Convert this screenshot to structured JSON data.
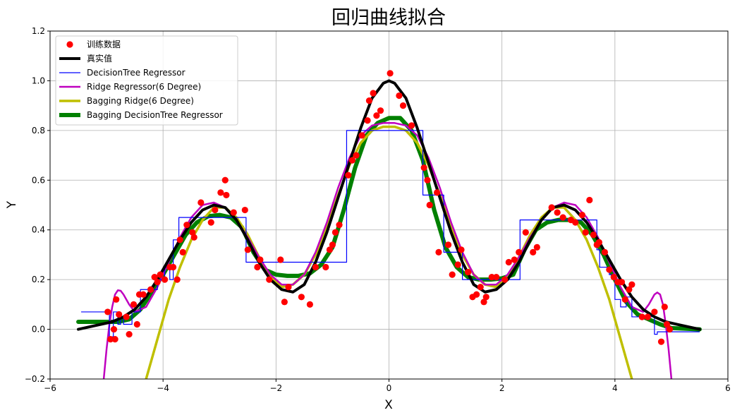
{
  "chart_data": {
    "type": "line",
    "title": "回归曲线拟合",
    "xlabel": "X",
    "ylabel": "Y",
    "xlim": [
      -6,
      6
    ],
    "ylim": [
      -0.2,
      1.2
    ],
    "xticks": [
      -6,
      -4,
      -2,
      0,
      2,
      4,
      6
    ],
    "yticks": [
      -0.2,
      0.0,
      0.2,
      0.4,
      0.6,
      0.8,
      1.0,
      1.2
    ],
    "grid": true,
    "legend_position": "top-left",
    "series": [
      {
        "name": "训练数据",
        "kind": "scatter",
        "color": "#ff0000",
        "points": [
          [
            -4.98,
            0.07
          ],
          [
            -4.93,
            -0.04
          ],
          [
            -4.87,
            0.0
          ],
          [
            -4.85,
            -0.04
          ],
          [
            -4.83,
            0.12
          ],
          [
            -4.78,
            0.06
          ],
          [
            -4.65,
            0.05
          ],
          [
            -4.6,
            -0.02
          ],
          [
            -4.52,
            0.1
          ],
          [
            -4.46,
            0.02
          ],
          [
            -4.42,
            0.14
          ],
          [
            -4.35,
            0.14
          ],
          [
            -4.22,
            0.16
          ],
          [
            -4.15,
            0.21
          ],
          [
            -4.1,
            0.19
          ],
          [
            -4.05,
            0.22
          ],
          [
            -3.97,
            0.2
          ],
          [
            -3.88,
            0.25
          ],
          [
            -3.82,
            0.25
          ],
          [
            -3.75,
            0.2
          ],
          [
            -3.7,
            0.36
          ],
          [
            -3.65,
            0.31
          ],
          [
            -3.58,
            0.42
          ],
          [
            -3.48,
            0.39
          ],
          [
            -3.45,
            0.37
          ],
          [
            -3.33,
            0.51
          ],
          [
            -3.15,
            0.43
          ],
          [
            -3.08,
            0.48
          ],
          [
            -2.98,
            0.55
          ],
          [
            -2.9,
            0.6
          ],
          [
            -2.88,
            0.54
          ],
          [
            -2.75,
            0.47
          ],
          [
            -2.55,
            0.48
          ],
          [
            -2.5,
            0.32
          ],
          [
            -2.33,
            0.25
          ],
          [
            -2.28,
            0.28
          ],
          [
            -2.12,
            0.2
          ],
          [
            -1.92,
            0.28
          ],
          [
            -1.85,
            0.11
          ],
          [
            -1.78,
            0.17
          ],
          [
            -1.55,
            0.13
          ],
          [
            -1.4,
            0.1
          ],
          [
            -1.3,
            0.25
          ],
          [
            -1.12,
            0.25
          ],
          [
            -1.05,
            0.32
          ],
          [
            -1.0,
            0.34
          ],
          [
            -0.95,
            0.39
          ],
          [
            -0.88,
            0.42
          ],
          [
            -0.72,
            0.62
          ],
          [
            -0.65,
            0.68
          ],
          [
            -0.58,
            0.7
          ],
          [
            -0.48,
            0.78
          ],
          [
            -0.38,
            0.84
          ],
          [
            -0.35,
            0.92
          ],
          [
            -0.28,
            0.95
          ],
          [
            -0.22,
            0.86
          ],
          [
            -0.15,
            0.88
          ],
          [
            0.02,
            1.03
          ],
          [
            0.18,
            0.94
          ],
          [
            0.25,
            0.9
          ],
          [
            0.4,
            0.82
          ],
          [
            0.62,
            0.65
          ],
          [
            0.68,
            0.6
          ],
          [
            0.72,
            0.5
          ],
          [
            0.85,
            0.55
          ],
          [
            0.88,
            0.31
          ],
          [
            1.05,
            0.34
          ],
          [
            1.12,
            0.22
          ],
          [
            1.22,
            0.26
          ],
          [
            1.28,
            0.32
          ],
          [
            1.4,
            0.23
          ],
          [
            1.48,
            0.13
          ],
          [
            1.55,
            0.14
          ],
          [
            1.62,
            0.17
          ],
          [
            1.68,
            0.11
          ],
          [
            1.72,
            0.13
          ],
          [
            1.82,
            0.21
          ],
          [
            1.9,
            0.21
          ],
          [
            2.05,
            0.2
          ],
          [
            2.12,
            0.27
          ],
          [
            2.22,
            0.28
          ],
          [
            2.3,
            0.31
          ],
          [
            2.42,
            0.39
          ],
          [
            2.55,
            0.31
          ],
          [
            2.62,
            0.33
          ],
          [
            2.88,
            0.49
          ],
          [
            2.98,
            0.47
          ],
          [
            3.08,
            0.45
          ],
          [
            3.22,
            0.44
          ],
          [
            3.3,
            0.43
          ],
          [
            3.42,
            0.46
          ],
          [
            3.48,
            0.39
          ],
          [
            3.55,
            0.52
          ],
          [
            3.62,
            0.38
          ],
          [
            3.68,
            0.34
          ],
          [
            3.72,
            0.35
          ],
          [
            3.82,
            0.31
          ],
          [
            3.9,
            0.24
          ],
          [
            3.98,
            0.21
          ],
          [
            4.05,
            0.19
          ],
          [
            4.12,
            0.19
          ],
          [
            4.18,
            0.12
          ],
          [
            4.25,
            0.16
          ],
          [
            4.3,
            0.18
          ],
          [
            4.48,
            0.05
          ],
          [
            4.58,
            0.05
          ],
          [
            4.7,
            0.07
          ],
          [
            4.82,
            -0.05
          ],
          [
            4.88,
            0.09
          ],
          [
            4.92,
            0.02
          ],
          [
            4.97,
            0.0
          ]
        ]
      },
      {
        "name": "真实值",
        "kind": "line",
        "color": "#000000",
        "x": [
          -5.5,
          -5.3,
          -5.1,
          -4.9,
          -4.7,
          -4.5,
          -4.3,
          -4.1,
          -3.9,
          -3.7,
          -3.5,
          -3.3,
          -3.1,
          -2.9,
          -2.7,
          -2.5,
          -2.3,
          -2.1,
          -1.9,
          -1.7,
          -1.5,
          -1.3,
          -1.1,
          -0.9,
          -0.7,
          -0.5,
          -0.3,
          -0.1,
          0.0,
          0.1,
          0.3,
          0.5,
          0.7,
          0.9,
          1.1,
          1.3,
          1.5,
          1.7,
          1.9,
          2.1,
          2.3,
          2.5,
          2.7,
          2.9,
          3.1,
          3.3,
          3.5,
          3.7,
          3.9,
          4.1,
          4.3,
          4.5,
          4.7,
          4.9,
          5.1,
          5.3,
          5.5
        ],
        "y": [
          0.0,
          0.01,
          0.02,
          0.03,
          0.05,
          0.08,
          0.13,
          0.2,
          0.28,
          0.36,
          0.43,
          0.48,
          0.5,
          0.49,
          0.44,
          0.36,
          0.27,
          0.2,
          0.16,
          0.15,
          0.18,
          0.27,
          0.39,
          0.53,
          0.67,
          0.81,
          0.93,
          0.99,
          1.0,
          0.99,
          0.93,
          0.81,
          0.67,
          0.53,
          0.39,
          0.27,
          0.18,
          0.15,
          0.16,
          0.2,
          0.27,
          0.36,
          0.44,
          0.49,
          0.5,
          0.48,
          0.43,
          0.36,
          0.28,
          0.2,
          0.13,
          0.08,
          0.05,
          0.03,
          0.02,
          0.01,
          0.0
        ]
      },
      {
        "name": "DecisionTree Regressor",
        "kind": "step",
        "color": "#0000ff",
        "x": [
          -5.45,
          -4.95,
          -4.95,
          -4.88,
          -4.88,
          -4.8,
          -4.8,
          -4.75,
          -4.75,
          -4.7,
          -4.7,
          -4.55,
          -4.55,
          -4.4,
          -4.4,
          -4.1,
          -4.1,
          -3.97,
          -3.97,
          -3.88,
          -3.88,
          -3.82,
          -3.82,
          -3.72,
          -3.72,
          -3.65,
          -3.65,
          -2.53,
          -2.53,
          -0.75,
          -0.75,
          0.6,
          0.6,
          0.9,
          0.9,
          0.97,
          0.97,
          1.3,
          1.3,
          2.32,
          2.32,
          3.68,
          3.68,
          3.73,
          3.73,
          3.9,
          3.9,
          4.0,
          4.0,
          4.1,
          4.1,
          4.2,
          4.2,
          4.3,
          4.3,
          4.5,
          4.5,
          4.7,
          4.7,
          4.75,
          4.75,
          5.5
        ],
        "y": [
          0.07,
          0.07,
          -0.03,
          -0.03,
          0.07,
          0.07,
          0.02,
          0.02,
          0.05,
          0.05,
          0.02,
          0.02,
          0.07,
          0.07,
          0.16,
          0.16,
          0.2,
          0.2,
          0.25,
          0.25,
          0.2,
          0.2,
          0.36,
          0.36,
          0.45,
          0.45,
          0.45,
          0.45,
          0.27,
          0.27,
          0.8,
          0.8,
          0.54,
          0.54,
          0.54,
          0.54,
          0.31,
          0.31,
          0.2,
          0.2,
          0.44,
          0.44,
          0.32,
          0.32,
          0.25,
          0.25,
          0.22,
          0.22,
          0.12,
          0.12,
          0.09,
          0.09,
          0.13,
          0.13,
          0.05,
          0.05,
          0.05,
          0.05,
          -0.02,
          -0.02,
          -0.01,
          -0.01
        ]
      },
      {
        "name": "Ridge Regressor(6 Degree)",
        "kind": "line",
        "color": "#bf00bf",
        "x": [
          -5.05,
          -5.0,
          -4.95,
          -4.9,
          -4.85,
          -4.8,
          -4.75,
          -4.7,
          -4.6,
          -4.5,
          -4.3,
          -4.1,
          -3.9,
          -3.7,
          -3.5,
          -3.3,
          -3.1,
          -2.9,
          -2.7,
          -2.5,
          -2.3,
          -2.1,
          -1.9,
          -1.7,
          -1.5,
          -1.3,
          -1.1,
          -0.9,
          -0.7,
          -0.5,
          -0.3,
          -0.1,
          0.0,
          0.1,
          0.3,
          0.5,
          0.7,
          0.9,
          1.1,
          1.3,
          1.5,
          1.7,
          1.9,
          2.1,
          2.3,
          2.5,
          2.7,
          2.9,
          3.1,
          3.3,
          3.5,
          3.7,
          3.9,
          4.1,
          4.3,
          4.5,
          4.6,
          4.7,
          4.75,
          4.8,
          4.85,
          4.9,
          4.95,
          5.0,
          5.05
        ],
        "y": [
          -0.2,
          -0.08,
          0.02,
          0.09,
          0.14,
          0.157,
          0.155,
          0.14,
          0.1,
          0.07,
          0.09,
          0.17,
          0.27,
          0.37,
          0.45,
          0.5,
          0.51,
          0.49,
          0.44,
          0.37,
          0.29,
          0.22,
          0.18,
          0.18,
          0.22,
          0.31,
          0.43,
          0.57,
          0.69,
          0.78,
          0.82,
          0.83,
          0.83,
          0.83,
          0.82,
          0.78,
          0.69,
          0.57,
          0.43,
          0.31,
          0.22,
          0.18,
          0.18,
          0.22,
          0.29,
          0.37,
          0.44,
          0.49,
          0.51,
          0.5,
          0.45,
          0.37,
          0.27,
          0.17,
          0.09,
          0.07,
          0.1,
          0.14,
          0.148,
          0.14,
          0.1,
          0.02,
          -0.08,
          -0.2,
          -0.3
        ]
      },
      {
        "name": "Bagging Ridge(6 Degree)",
        "kind": "line",
        "color": "#bfbf00",
        "x": [
          -4.3,
          -4.2,
          -4.1,
          -4.0,
          -3.9,
          -3.7,
          -3.5,
          -3.3,
          -3.1,
          -2.9,
          -2.7,
          -2.5,
          -2.3,
          -2.1,
          -1.9,
          -1.7,
          -1.5,
          -1.3,
          -1.1,
          -0.9,
          -0.7,
          -0.5,
          -0.3,
          -0.1,
          0.0,
          0.1,
          0.3,
          0.5,
          0.7,
          0.9,
          1.1,
          1.3,
          1.5,
          1.7,
          1.9,
          2.1,
          2.3,
          2.5,
          2.7,
          2.9,
          3.1,
          3.3,
          3.5,
          3.7,
          3.9,
          4.0,
          4.1,
          4.2,
          4.3
        ],
        "y": [
          -0.2,
          -0.12,
          -0.04,
          0.04,
          0.12,
          0.25,
          0.36,
          0.44,
          0.49,
          0.49,
          0.45,
          0.38,
          0.29,
          0.21,
          0.17,
          0.18,
          0.22,
          0.3,
          0.41,
          0.54,
          0.66,
          0.75,
          0.8,
          0.815,
          0.815,
          0.815,
          0.8,
          0.75,
          0.66,
          0.54,
          0.41,
          0.3,
          0.22,
          0.18,
          0.17,
          0.21,
          0.29,
          0.38,
          0.45,
          0.49,
          0.49,
          0.44,
          0.36,
          0.25,
          0.12,
          0.04,
          -0.04,
          -0.12,
          -0.2
        ]
      },
      {
        "name": "Bagging DecisionTree Regressor",
        "kind": "line",
        "color": "#008000",
        "x": [
          -5.5,
          -5.0,
          -4.8,
          -4.6,
          -4.4,
          -4.2,
          -4.0,
          -3.8,
          -3.6,
          -3.4,
          -3.2,
          -3.0,
          -2.8,
          -2.6,
          -2.4,
          -2.2,
          -2.0,
          -1.8,
          -1.6,
          -1.4,
          -1.2,
          -1.0,
          -0.8,
          -0.6,
          -0.4,
          -0.2,
          0.0,
          0.2,
          0.4,
          0.6,
          0.8,
          1.0,
          1.2,
          1.4,
          1.6,
          1.8,
          2.0,
          2.2,
          2.4,
          2.6,
          2.8,
          3.0,
          3.2,
          3.4,
          3.6,
          3.8,
          4.0,
          4.2,
          4.4,
          4.6,
          4.8,
          5.0,
          5.5
        ],
        "y": [
          0.03,
          0.03,
          0.03,
          0.04,
          0.08,
          0.15,
          0.22,
          0.3,
          0.38,
          0.43,
          0.455,
          0.46,
          0.45,
          0.41,
          0.31,
          0.24,
          0.22,
          0.215,
          0.215,
          0.225,
          0.26,
          0.33,
          0.48,
          0.65,
          0.78,
          0.83,
          0.85,
          0.85,
          0.8,
          0.68,
          0.48,
          0.33,
          0.25,
          0.21,
          0.2,
          0.2,
          0.205,
          0.22,
          0.32,
          0.4,
          0.43,
          0.44,
          0.44,
          0.43,
          0.38,
          0.3,
          0.2,
          0.11,
          0.06,
          0.04,
          0.02,
          0.005,
          0.0
        ]
      }
    ]
  }
}
